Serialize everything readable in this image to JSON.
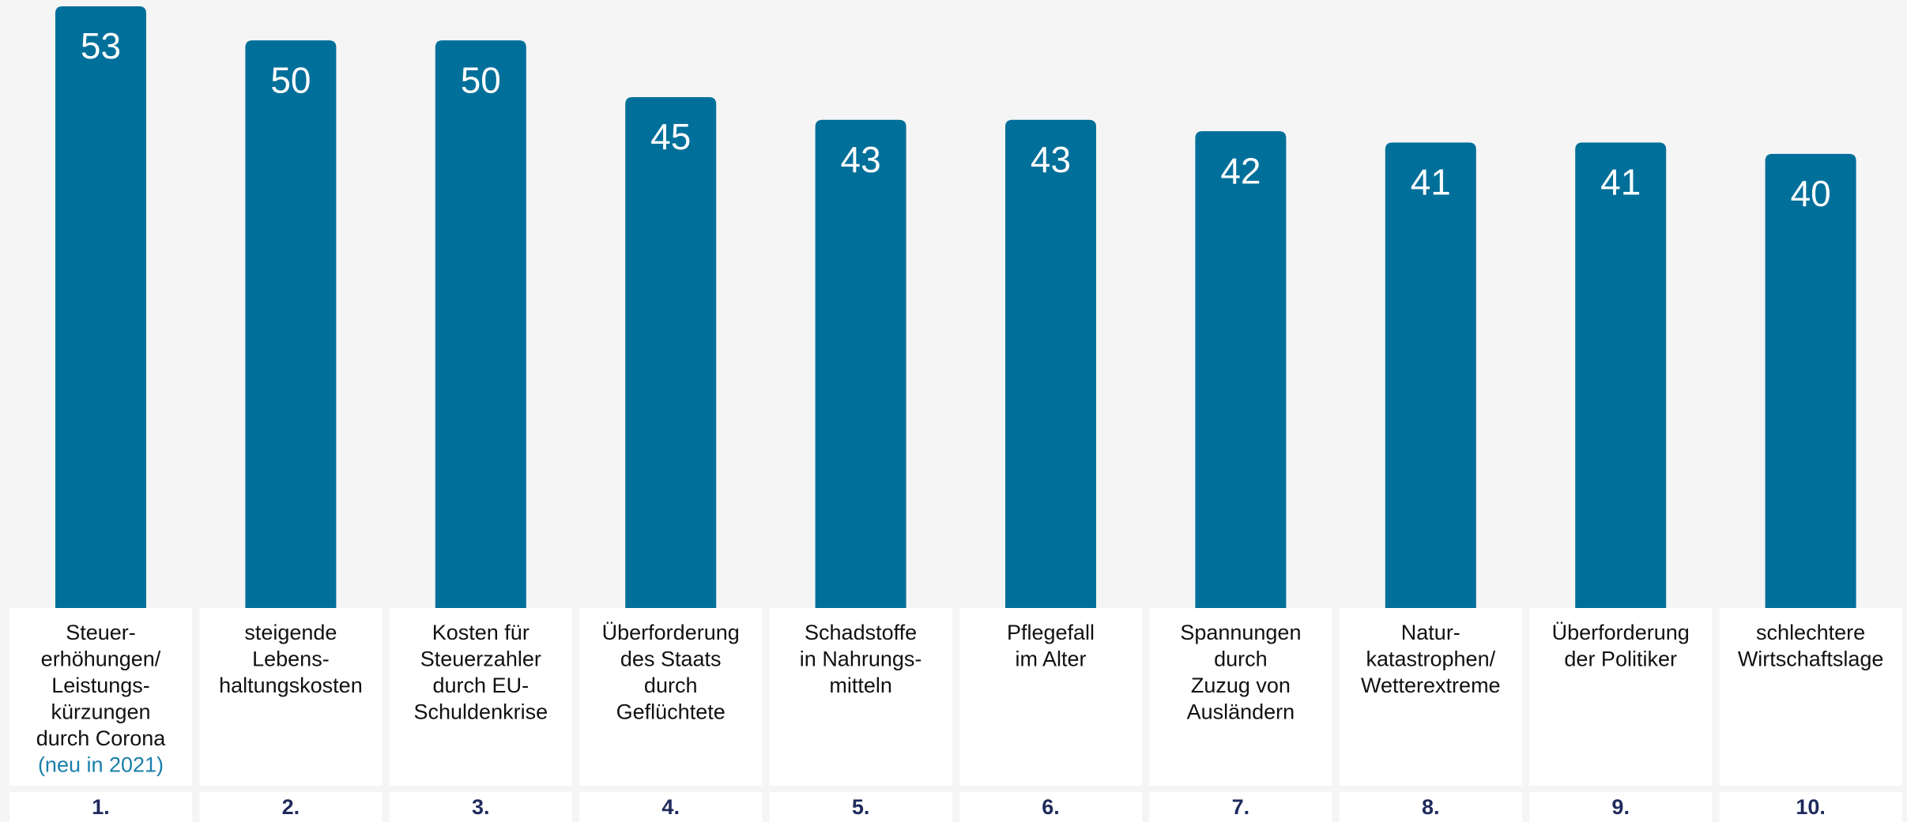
{
  "chart_data": {
    "type": "bar",
    "categories": [
      [
        "Steuer-",
        "erhöhungen/",
        "Leistungs-",
        "kürzungen",
        "durch Corona"
      ],
      [
        "steigende",
        "Lebens-",
        "haltungskosten"
      ],
      [
        "Kosten für",
        "Steuerzahler",
        "durch EU-",
        "Schuldenkrise"
      ],
      [
        "Überforderung",
        "des Staats",
        "durch",
        "Geflüchtete"
      ],
      [
        "Schadstoffe",
        "in Nahrungs-",
        "mitteln"
      ],
      [
        "Pflegefall",
        "im Alter"
      ],
      [
        "Spannungen",
        "durch",
        "Zuzug von",
        "Ausländern"
      ],
      [
        "Natur-",
        "katastrophen/",
        "Wetterextreme"
      ],
      [
        "Überforderung",
        "der Politiker"
      ],
      [
        "schlechtere",
        "Wirtschaftslage"
      ]
    ],
    "annotations": [
      {
        "category": 0,
        "text": "(neu in 2021)",
        "color": "#1a7fab"
      }
    ],
    "ranks": [
      "1.",
      "2.",
      "3.",
      "4.",
      "5.",
      "6.",
      "7.",
      "8.",
      "9.",
      "10."
    ],
    "values": [
      53,
      50,
      50,
      45,
      43,
      43,
      42,
      41,
      41,
      40
    ],
    "color": "#006f9a",
    "ylim": [
      0,
      53
    ]
  }
}
